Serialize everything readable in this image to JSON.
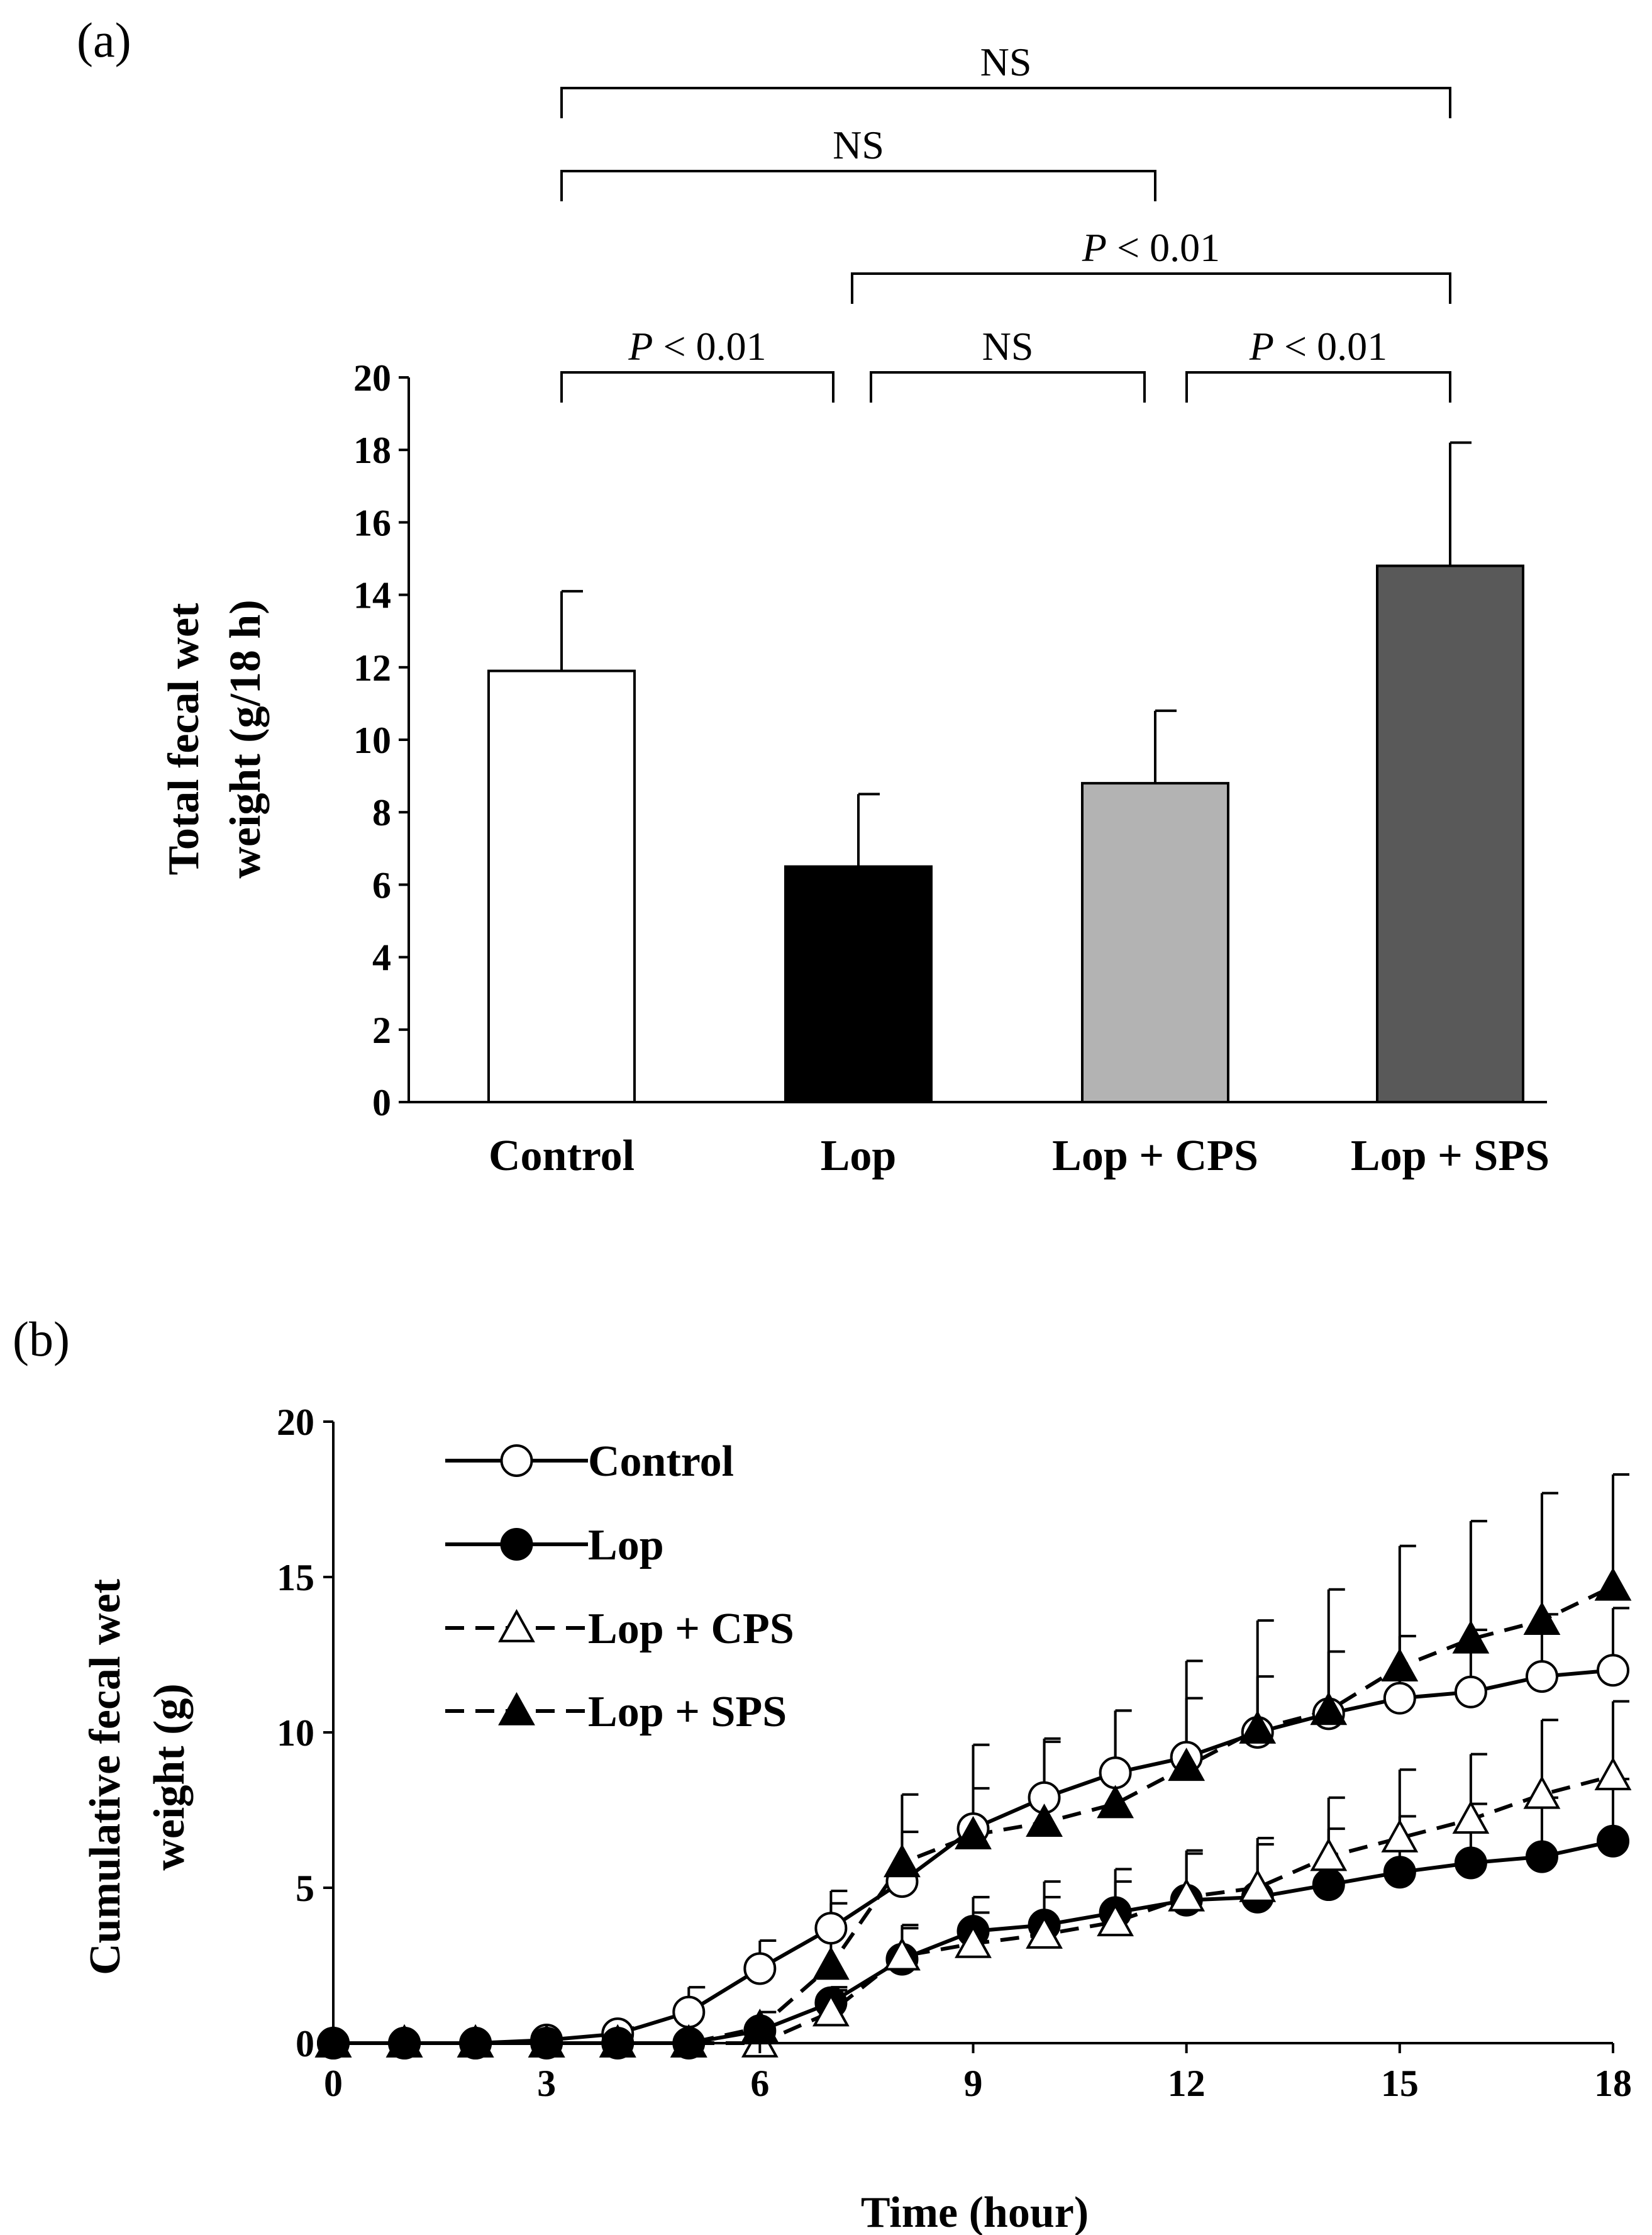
{
  "chart_data": [
    {
      "type": "bar",
      "panel_label": "(a)",
      "categories": [
        "Control",
        "Lop",
        "Lop + CPS",
        "Lop + SPS"
      ],
      "values": [
        11.9,
        6.5,
        8.8,
        14.8
      ],
      "errors": [
        2.2,
        2.0,
        2.0,
        3.4
      ],
      "bar_colors": [
        "#ffffff",
        "#000000",
        "#b3b3b3",
        "#595959"
      ],
      "ylabel": [
        "Total fecal wet",
        "weight (g/18 h)"
      ],
      "ylim": [
        0,
        20
      ],
      "yticks": [
        "0",
        "2",
        "4",
        "6",
        "8",
        "10",
        "12",
        "14",
        "16",
        "18",
        "20"
      ],
      "comparisons": [
        {
          "from": 0,
          "to": 1,
          "p_italic": "P",
          "text": " < 0.01",
          "level": 1
        },
        {
          "from": 1,
          "to": 2,
          "p_italic": "",
          "text": "NS",
          "level": 1
        },
        {
          "from": 2,
          "to": 3,
          "p_italic": "P",
          "text": " < 0.01",
          "level": 1
        },
        {
          "from": 1,
          "to": 3,
          "p_italic": "P",
          "text": " < 0.01",
          "level": 2
        },
        {
          "from": 0,
          "to": 2,
          "p_italic": "",
          "text": "NS",
          "level": 3
        },
        {
          "from": 0,
          "to": 3,
          "p_italic": "",
          "text": "NS",
          "level": 4
        }
      ]
    },
    {
      "type": "line",
      "panel_label": "(b)",
      "xlabel": "Time (hour)",
      "ylabel": [
        "Cumulative fecal wet",
        "weight (g)"
      ],
      "xlim": [
        0,
        18
      ],
      "ylim": [
        0,
        20
      ],
      "xticks": [
        "0",
        "3",
        "6",
        "9",
        "12",
        "15",
        "18"
      ],
      "yticks": [
        "0",
        "5",
        "10",
        "15",
        "20"
      ],
      "x": [
        0,
        1,
        2,
        3,
        4,
        5,
        6,
        7,
        8,
        9,
        10,
        11,
        12,
        13,
        14,
        15,
        16,
        17,
        18
      ],
      "series": [
        {
          "name": "Control",
          "marker": "circle-open",
          "dash": "solid",
          "values": [
            0,
            0,
            0,
            0.1,
            0.3,
            1.0,
            2.4,
            3.7,
            5.2,
            6.9,
            7.9,
            8.7,
            9.2,
            10.0,
            10.6,
            11.1,
            11.3,
            11.8,
            12.0
          ],
          "errors": [
            0,
            0,
            0,
            0,
            0.2,
            0.8,
            0.9,
            1.2,
            1.6,
            1.3,
            1.9,
            2.0,
            1.9,
            1.8,
            2.0,
            2.0,
            2.0,
            2.0,
            2.0
          ]
        },
        {
          "name": "Lop",
          "marker": "circle-filled",
          "dash": "solid",
          "values": [
            0,
            0,
            0,
            0,
            0,
            0,
            0.4,
            1.3,
            2.7,
            3.6,
            3.8,
            4.2,
            4.6,
            4.7,
            5.1,
            5.5,
            5.8,
            6.0,
            6.5
          ],
          "errors": [
            0,
            0,
            0,
            0,
            0,
            0,
            0.2,
            0.5,
            1.1,
            1.1,
            1.4,
            1.4,
            1.6,
            1.7,
            1.8,
            1.8,
            1.9,
            1.9,
            2.0
          ]
        },
        {
          "name": "Lop + CPS",
          "marker": "triangle-open",
          "dash": "dashed",
          "values": [
            0,
            0,
            0,
            0,
            0,
            0,
            0,
            1.0,
            2.8,
            3.2,
            3.5,
            3.9,
            4.7,
            5.0,
            6.0,
            6.6,
            7.2,
            8.0,
            8.6
          ],
          "errors": [
            0,
            0,
            0,
            0,
            0,
            0,
            0,
            0.7,
            0.9,
            1.0,
            1.2,
            1.3,
            1.4,
            1.6,
            1.9,
            2.2,
            2.1,
            2.4,
            2.4
          ]
        },
        {
          "name": "Lop + SPS",
          "marker": "triangle-filled",
          "dash": "dashed",
          "values": [
            0,
            0,
            0,
            0,
            0,
            0,
            0.5,
            2.5,
            5.8,
            6.7,
            7.1,
            7.7,
            8.9,
            10.1,
            10.7,
            12.1,
            13.0,
            13.6,
            14.7
          ],
          "errors": [
            0,
            0,
            0,
            0,
            0,
            0,
            0.5,
            2.0,
            2.2,
            2.9,
            2.6,
            3.0,
            3.4,
            3.5,
            3.9,
            3.9,
            3.8,
            4.1,
            3.6
          ]
        }
      ]
    }
  ]
}
